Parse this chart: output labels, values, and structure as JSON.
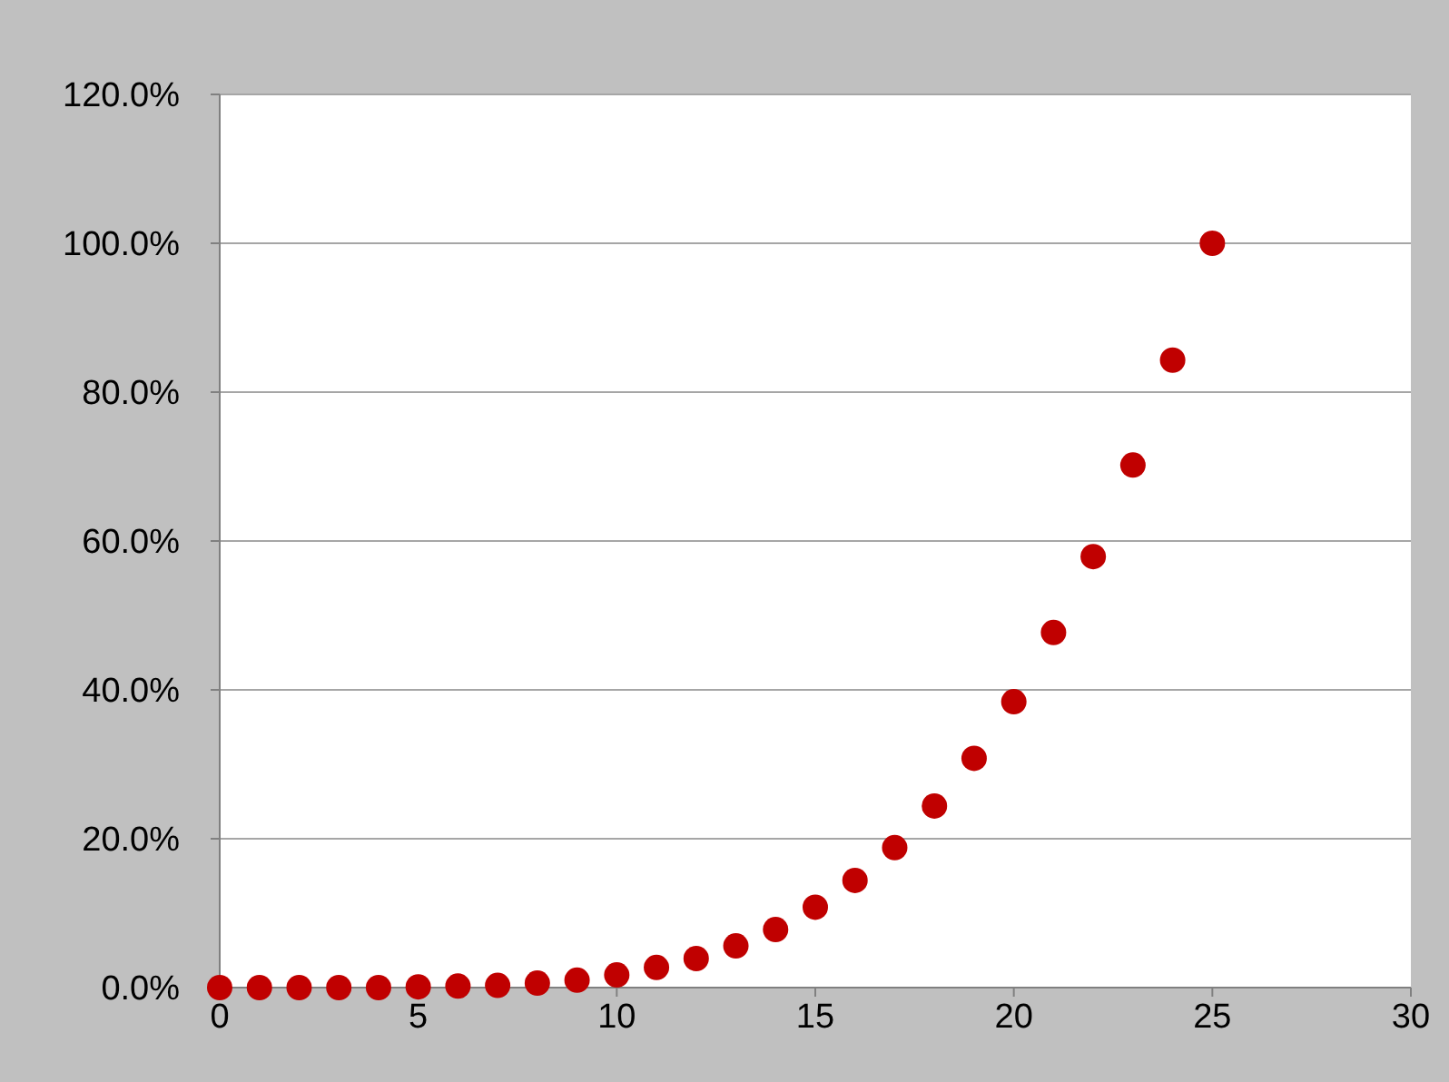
{
  "chart_data": {
    "type": "scatter",
    "x": [
      0,
      1,
      2,
      3,
      4,
      5,
      6,
      7,
      8,
      9,
      10,
      11,
      12,
      13,
      14,
      15,
      16,
      17,
      18,
      19,
      20,
      21,
      22,
      23,
      24,
      25
    ],
    "series": [
      {
        "color": "#c00000",
        "values": [
          0,
          0,
          0,
          0,
          0,
          0.1,
          0.2,
          0.3,
          0.6,
          1.0,
          1.7,
          2.7,
          3.9,
          5.6,
          7.8,
          10.8,
          14.4,
          18.8,
          24.4,
          30.8,
          38.4,
          47.7,
          57.9,
          70.2,
          84.3,
          100
        ]
      }
    ],
    "xlim": [
      0,
      30
    ],
    "xticks": [
      0,
      5,
      10,
      15,
      20,
      25,
      30
    ],
    "ylim": [
      0,
      120
    ],
    "yticks": [
      {
        "value": 0,
        "label": "0.0%"
      },
      {
        "value": 20,
        "label": "20.0%"
      },
      {
        "value": 40,
        "label": "40.0%"
      },
      {
        "value": 60,
        "label": "60.0%"
      },
      {
        "value": 80,
        "label": "80.0%"
      },
      {
        "value": 100,
        "label": "100.0%"
      },
      {
        "value": 120,
        "label": "120.0%"
      }
    ],
    "grid": "y",
    "marker": "circle"
  }
}
